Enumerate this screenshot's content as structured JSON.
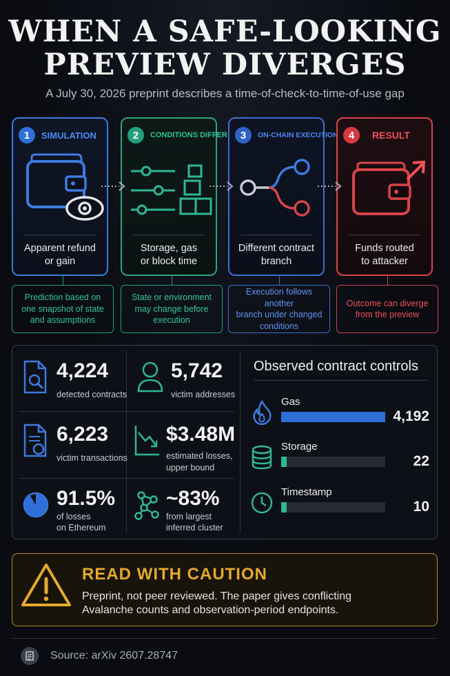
{
  "header": {
    "title_line1": "WHEN A SAFE-LOOKING",
    "title_line2": "PREVIEW DIVERGES",
    "subtitle": "A July 30, 2026 preprint describes a time-of-check-to-time-of-use gap"
  },
  "steps": [
    {
      "number": "1",
      "label": "SIMULATION",
      "description_line1": "Apparent refund",
      "description_line2": "or gain",
      "icon": "wallet-eye-icon",
      "color": "#3d7be0",
      "note_line1": "Prediction based on",
      "note_line2": "one snapshot of state",
      "note_line3": "and assumptions"
    },
    {
      "number": "2",
      "label": "CONDITIONS DIFFER",
      "description_line1": "Storage, gas",
      "description_line2": "or block time",
      "icon": "sliders-blocks-icon",
      "color": "#2fa37f",
      "note_line1": "State or environment",
      "note_line2": "may change before",
      "note_line3": "execution"
    },
    {
      "number": "3",
      "label": "ON-CHAIN EXECUTION",
      "description_line1": "Different contract",
      "description_line2": "branch",
      "icon": "branch-icon",
      "color": "#3d6fd0",
      "note_line1": "Execution follows another",
      "note_line2": "branch under changed",
      "note_line3": "conditions"
    },
    {
      "number": "4",
      "label": "RESULT",
      "description_line1": "Funds routed",
      "description_line2": "to attacker",
      "icon": "wallet-arrow-icon",
      "color": "#d9444a",
      "note_line1": "Outcome can diverge",
      "note_line2": "from the preview",
      "note_line3": ""
    }
  ],
  "stats": [
    {
      "value": "4,224",
      "label_line1": "detected contracts",
      "label_line2": "",
      "icon": "document-search-icon"
    },
    {
      "value": "5,742",
      "label_line1": "victim addresses",
      "label_line2": "",
      "icon": "user-icon"
    },
    {
      "value": "6,223",
      "label_line1": "victim transactions",
      "label_line2": "",
      "icon": "document-refresh-icon"
    },
    {
      "value": "$3.48M",
      "label_line1": "estimated losses,",
      "label_line2": "upper bound",
      "icon": "trend-down-icon"
    },
    {
      "value": "91.5%",
      "label_line1": "of losses",
      "label_line2": "on Ethereum",
      "icon": "pie-icon"
    },
    {
      "value": "~83%",
      "label_line1": "from largest",
      "label_line2": "inferred cluster",
      "icon": "network-icon"
    }
  ],
  "controls": {
    "title": "Observed contract controls",
    "items": [
      {
        "name": "Gas",
        "value": "4,192",
        "count": 4192,
        "icon": "flame-icon",
        "color": "#2f6fd8"
      },
      {
        "name": "Storage",
        "value": "22",
        "count": 22,
        "icon": "database-icon",
        "color": "#2fb894"
      },
      {
        "name": "Timestamp",
        "value": "10",
        "count": 10,
        "icon": "clock-icon",
        "color": "#2fb894"
      }
    ]
  },
  "caution": {
    "title": "READ WITH CAUTION",
    "text_line1": "Preprint, not peer reviewed. The paper gives conflicting",
    "text_line2": "Avalanche counts and observation-period endpoints.",
    "icon": "warning-icon"
  },
  "source": {
    "text": "Source: arXiv 2607.28747",
    "icon": "document-icon"
  }
}
